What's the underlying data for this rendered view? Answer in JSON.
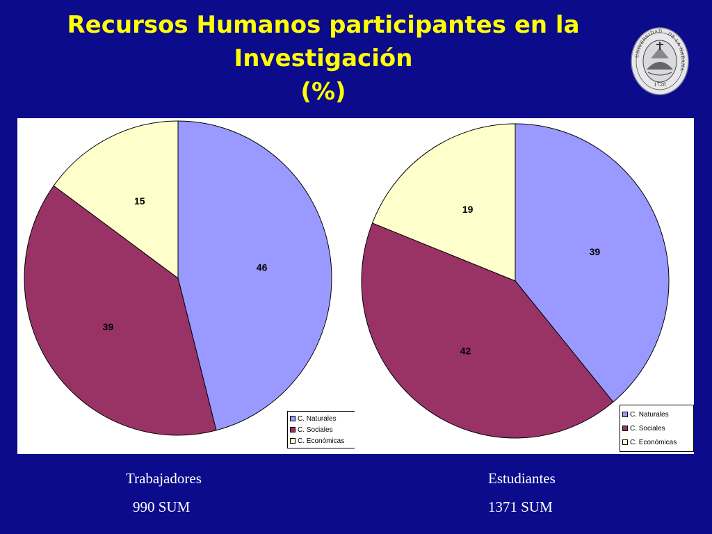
{
  "title": {
    "line1": "Recursos Humanos participantes en la",
    "line2": "Investigación",
    "line3": "(%)"
  },
  "seal": {
    "icon": "university-seal-icon",
    "text_left": "UNIVERSIDAD",
    "text_right": "DE LA HABANA",
    "year": "1728"
  },
  "chart_data": [
    {
      "type": "pie",
      "title": "",
      "categories": [
        "C. Naturales",
        "C. Sociales",
        "C. Económicas"
      ],
      "values": [
        46,
        39,
        15
      ],
      "colors": [
        "#9999ff",
        "#993366",
        "#ffffcc"
      ],
      "legend_position": "bottom-right"
    },
    {
      "type": "pie",
      "title": "",
      "categories": [
        "C. Naturales",
        "C. Sociales",
        "C. Económicas"
      ],
      "values": [
        39,
        42,
        19
      ],
      "colors": [
        "#9999ff",
        "#993366",
        "#ffffcc"
      ],
      "legend_position": "bottom-right"
    }
  ],
  "captions": {
    "left_group": "Trabajadores",
    "left_count": "990 SUM",
    "right_group": "Estudiantes",
    "right_count": "1371 SUM"
  }
}
